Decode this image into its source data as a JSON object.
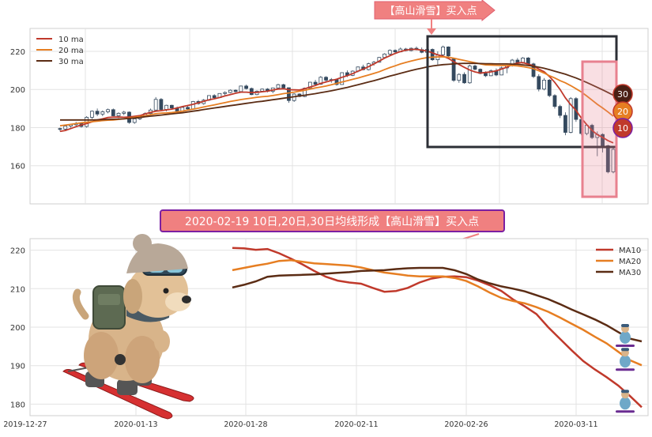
{
  "colors": {
    "ma10": "#c0392b",
    "ma20": "#e67e22",
    "ma30": "#5b2c14",
    "candle_up": "#ffffff",
    "candle_down": "#34495e",
    "annotation_fill": "#f08080",
    "annotation_border": "#7b1fa2",
    "highlight_box": "#2c2f36",
    "pink_box": "#e8818f"
  },
  "annotations": {
    "top_arrow_label": "【高山滑雪】买入点",
    "mid_label": "2020-02-19 10日,20日,30日均线形成【高山滑雪】买入点",
    "ma_badges": [
      "30",
      "20",
      "10"
    ]
  },
  "icons": {
    "skier_mascot": "skiing-puppy-icon",
    "small_skier": "small-skier-icon"
  },
  "chart_data": [
    {
      "type": "line",
      "title": "",
      "xlabel": "",
      "ylabel": "",
      "ylim": [
        140,
        232
      ],
      "yticks": [
        160,
        180,
        200,
        220
      ],
      "legend": {
        "placement": "top-left",
        "entries": [
          "10 ma",
          "20 ma",
          "30 ma"
        ]
      },
      "grid": true,
      "candles_count": 90,
      "candles": [
        [
          179.5,
          180,
          178,
          179.2
        ],
        [
          179.2,
          181,
          178.5,
          180.8
        ],
        [
          180.8,
          182,
          180,
          181.5
        ],
        [
          181.5,
          183,
          180.5,
          182.1
        ],
        [
          182.1,
          182.5,
          180,
          180.6
        ],
        [
          180.6,
          186,
          180,
          185.4
        ],
        [
          185.4,
          189,
          184.5,
          188.6
        ],
        [
          188.6,
          190,
          186,
          187.1
        ],
        [
          187.1,
          189,
          186,
          188.3
        ],
        [
          188.3,
          190,
          187.5,
          189.4
        ],
        [
          189.4,
          190,
          186,
          186.2
        ],
        [
          186.2,
          188,
          185,
          187.5
        ],
        [
          187.5,
          188.8,
          186.5,
          188.1
        ],
        [
          188.1,
          188.5,
          182,
          182.7
        ],
        [
          182.7,
          185,
          182,
          184.6
        ],
        [
          184.6,
          186.5,
          184,
          186
        ],
        [
          186,
          188,
          185.5,
          187.4
        ],
        [
          187.4,
          190,
          187,
          189.2
        ],
        [
          189.2,
          196,
          189,
          194.8
        ],
        [
          194.8,
          195.5,
          189,
          189.5
        ],
        [
          189.5,
          192,
          188.5,
          191.7
        ],
        [
          191.7,
          192,
          189.5,
          190.3
        ],
        [
          190.3,
          191,
          188,
          188.7
        ],
        [
          188.7,
          191,
          188.5,
          190.6
        ],
        [
          190.6,
          191.5,
          189,
          189.8
        ],
        [
          189.8,
          194,
          189.5,
          193.7
        ],
        [
          193.7,
          194.5,
          192,
          192.6
        ],
        [
          192.6,
          195,
          192,
          194.4
        ],
        [
          194.4,
          197,
          194,
          196.8
        ],
        [
          196.8,
          197.5,
          195,
          195.7
        ],
        [
          195.7,
          198,
          195.5,
          197.9
        ],
        [
          197.9,
          199,
          197,
          198.4
        ],
        [
          198.4,
          200,
          198,
          199.6
        ],
        [
          199.6,
          200,
          198.5,
          198.9
        ],
        [
          198.9,
          202,
          198.5,
          201.8
        ],
        [
          201.8,
          202.5,
          200,
          200.5
        ],
        [
          200.5,
          201,
          197,
          197.3
        ],
        [
          197.3,
          199.5,
          197,
          199.1
        ],
        [
          199.1,
          200.5,
          198.5,
          200.2
        ],
        [
          200.2,
          200.7,
          198.5,
          199
        ],
        [
          199,
          201,
          198,
          200.8
        ],
        [
          200.8,
          203,
          200.5,
          202.5
        ],
        [
          202.5,
          203,
          200,
          200.9
        ],
        [
          200.9,
          201,
          193,
          194.2
        ],
        [
          194.2,
          198,
          193.5,
          197.6
        ],
        [
          197.6,
          198,
          196,
          196.3
        ],
        [
          196.3,
          201,
          196,
          200.7
        ],
        [
          200.7,
          204,
          200.5,
          203.8
        ],
        [
          203.8,
          205,
          202,
          202.7
        ],
        [
          202.7,
          207,
          202.5,
          206.4
        ],
        [
          206.4,
          207,
          204,
          204.9
        ],
        [
          204.9,
          206,
          203.5,
          205.2
        ],
        [
          205.2,
          205.5,
          202,
          202.6
        ],
        [
          202.6,
          209,
          202.5,
          208.8
        ],
        [
          208.8,
          210,
          206.5,
          207.4
        ],
        [
          207.4,
          210,
          207,
          209.6
        ],
        [
          209.6,
          212,
          209,
          211.8
        ],
        [
          211.8,
          213,
          210,
          210.4
        ],
        [
          210.4,
          214,
          210,
          213.5
        ],
        [
          213.5,
          215,
          212.5,
          214.3
        ],
        [
          214.3,
          217,
          214,
          216.8
        ],
        [
          216.8,
          219,
          216.5,
          218.6
        ],
        [
          218.6,
          221,
          218,
          220.5
        ],
        [
          220.5,
          221,
          219,
          219.7
        ],
        [
          219.7,
          222,
          219.5,
          221.2
        ],
        [
          221.2,
          221.8,
          220,
          220.4
        ],
        [
          220.4,
          222,
          220,
          221.6
        ],
        [
          221.6,
          222.5,
          220.5,
          220.9
        ],
        [
          220.9,
          222,
          219,
          219.5
        ],
        [
          219.5,
          222,
          218,
          221
        ],
        [
          221,
          221.5,
          215,
          215.6
        ],
        [
          215.6,
          220,
          213,
          218.2
        ],
        [
          218.2,
          223,
          217.5,
          222.3
        ],
        [
          222.3,
          222.6,
          217,
          217.6
        ],
        [
          216,
          216.3,
          204,
          204.8
        ],
        [
          204.8,
          208.5,
          203.5,
          207.9
        ],
        [
          207.9,
          209,
          203,
          203.5
        ],
        [
          203.5,
          213,
          203,
          212.3
        ],
        [
          212.3,
          213,
          210,
          210.6
        ],
        [
          210.6,
          211,
          208,
          208.4
        ],
        [
          208.4,
          209.5,
          206.5,
          207.2
        ],
        [
          207.2,
          210.5,
          207,
          209.8
        ],
        [
          209.8,
          211,
          207,
          207.6
        ],
        [
          207.6,
          212,
          207.5,
          211.3
        ],
        [
          211.3,
          213,
          208.5,
          212.6
        ],
        [
          212.6,
          216,
          212,
          215.4
        ],
        [
          215.4,
          216.5,
          214,
          214.1
        ],
        [
          214.1,
          217,
          213.5,
          216.5
        ],
        [
          216.5,
          217,
          213,
          213.4
        ],
        [
          213.4,
          214,
          206,
          206.8
        ]
      ],
      "extra_candles": [
        [
          206.8,
          208,
          199,
          200.2
        ],
        [
          200.2,
          206,
          199.5,
          204.9
        ],
        [
          204.9,
          205.5,
          196,
          196.8
        ],
        [
          196.8,
          197.5,
          190,
          191.1
        ],
        [
          191.1,
          192,
          185,
          186.4
        ],
        [
          186.4,
          188,
          176,
          177.5
        ],
        [
          177.5,
          196,
          177,
          195.2
        ],
        [
          195.2,
          196,
          183,
          184.3
        ],
        [
          184.3,
          185,
          176,
          176.9
        ],
        [
          176.9,
          182,
          176,
          181.2
        ],
        [
          181.2,
          182,
          174,
          174.8
        ],
        [
          174.8,
          178,
          165,
          176.4
        ],
        [
          176.4,
          177,
          167,
          170.5
        ],
        [
          170.5,
          171,
          156,
          156.8
        ],
        [
          156.8,
          170,
          156,
          168.6
        ]
      ],
      "series": [
        {
          "name": "10 ma",
          "values": [
            178,
            178.5,
            179.5,
            180.5,
            181.4,
            182.1,
            183,
            184,
            184.6,
            185.3,
            185.5,
            185.6,
            185.4,
            185.6,
            185.9,
            186.3,
            187.2,
            188,
            188.6,
            188.9,
            189.3,
            189.7,
            190.3,
            191,
            191.6,
            192.2,
            193,
            193.8,
            194.6,
            195.1,
            195.8,
            196.6,
            197.3,
            198,
            198.6,
            198.6,
            198.4,
            198.5,
            198.8,
            199.1,
            199.7,
            200.2,
            200.4,
            199.9,
            199.8,
            199.7,
            200.4,
            201.3,
            202.1,
            203.2,
            203.9,
            204.7,
            205.4,
            206.4,
            207.2,
            208.3,
            209.6,
            210.7,
            212,
            213.4,
            214.9,
            216.4,
            217.7,
            218.9,
            219.9,
            220.6,
            221,
            221,
            220.6,
            220.2,
            219.2,
            218.1,
            217.5,
            216.3,
            214.6,
            213.1,
            211.6,
            210.2,
            209.2,
            208.6,
            208.9,
            209.2,
            209.8,
            210.7,
            211.7,
            213,
            213.9,
            214.1,
            213.3,
            212.4,
            210.7,
            209.3,
            206.8,
            203.7,
            200,
            195.6,
            192,
            189,
            185,
            181.6,
            178.6,
            176.3,
            174.9,
            173.2,
            172
          ]
        },
        {
          "name": "20 ma",
          "values": [
            181,
            181.3,
            181.7,
            182.1,
            182.5,
            182.8,
            183.1,
            183.4,
            183.7,
            183.9,
            184,
            184.3,
            184.6,
            185,
            185.4,
            185.8,
            186.2,
            186.8,
            187.3,
            187.6,
            187.7,
            187.9,
            188.2,
            188.6,
            189.2,
            189.7,
            190.2,
            190.8,
            191.4,
            191.9,
            192.5,
            193.1,
            193.7,
            194.2,
            194.7,
            195.1,
            195.5,
            195.9,
            196.2,
            196.4,
            196.8,
            197.3,
            197.8,
            198.2,
            198.6,
            199.1,
            199.6,
            200.2,
            200.8,
            201.3,
            201.8,
            202.5,
            203.2,
            203.9,
            204.6,
            205.3,
            206,
            206.8,
            207.6,
            208.4,
            209.3,
            210.4,
            211.5,
            212.4,
            213.4,
            214.2,
            214.9,
            215.6,
            216.2,
            216.7,
            216.9,
            217.1,
            217.1,
            216.9,
            216.4,
            215.8,
            215.2,
            214.6,
            214,
            213.4,
            212.9,
            212.8,
            212.7,
            212.6,
            212.6,
            212.6,
            212.4,
            212,
            211.5,
            210.9,
            209.8,
            208.6,
            207.2,
            206,
            204.6,
            203.5,
            202,
            200.4,
            198.7,
            196.6,
            194.4,
            192.2,
            190.3,
            188.2,
            186
          ]
        },
        {
          "name": "30 ma",
          "values": [
            184,
            184,
            184,
            184,
            184,
            184,
            184,
            184.1,
            184.2,
            184.3,
            184.4,
            184.5,
            184.6,
            184.8,
            185,
            185.3,
            185.7,
            186,
            186.3,
            186.6,
            186.9,
            187.2,
            187.5,
            187.8,
            188.2,
            188.6,
            189,
            189.5,
            189.9,
            190.3,
            190.7,
            191.1,
            191.5,
            191.9,
            192.3,
            192.7,
            193.1,
            193.5,
            193.8,
            194.2,
            194.6,
            195,
            195.4,
            195.8,
            196.2,
            196.6,
            197,
            197.4,
            197.8,
            198.3,
            198.8,
            199.3,
            199.9,
            200.5,
            201.1,
            201.8,
            202.5,
            203.2,
            203.9,
            204.6,
            205.4,
            206.2,
            207,
            207.7,
            208.5,
            209.2,
            209.9,
            210.6,
            211.2,
            211.8,
            212.3,
            212.7,
            213,
            213.2,
            213.4,
            213.6,
            213.7,
            213.7,
            213.7,
            213.6,
            213.5,
            213.5,
            213.4,
            213.4,
            213.4,
            213.3,
            213.2,
            212.9,
            212.6,
            212.2,
            211.7,
            211.1,
            210.4,
            209.6,
            208.8,
            208,
            207,
            206,
            204.9,
            203.7,
            202.4,
            201.1,
            199.8,
            198.4,
            197
          ]
        }
      ]
    },
    {
      "type": "line",
      "title": "",
      "xlabel": "",
      "ylabel": "",
      "ylim": [
        177,
        223
      ],
      "yticks": [
        180,
        190,
        200,
        210,
        220
      ],
      "x_start": "2019-12-27",
      "x_end": "2020-03-18",
      "xticks": [
        "2019-12-27",
        "2020-01-13",
        "2020-01-28",
        "2020-02-11",
        "2020-02-26",
        "2020-03-11"
      ],
      "legend": {
        "placement": "top-right",
        "entries": [
          "MA10",
          "MA20",
          "MA30"
        ]
      },
      "grid": true,
      "series": [
        {
          "name": "MA10",
          "values": [
            220.6,
            220.5,
            220.1,
            220.3,
            219.2,
            217.8,
            216.3,
            214.6,
            213.1,
            212.1,
            211.6,
            211.3,
            210.2,
            209.2,
            209.4,
            210.2,
            211.6,
            212.6,
            213.1,
            213.2,
            213,
            212.1,
            210.9,
            209.4,
            207.2,
            205.4,
            203.4,
            200,
            197,
            194,
            191.2,
            189,
            187,
            184.8,
            182.1,
            179.2
          ]
        },
        {
          "name": "MA20",
          "values": [
            214.8,
            215.4,
            216,
            216.5,
            217.2,
            217.4,
            217,
            216.6,
            216.4,
            216.2,
            216,
            215.5,
            214.8,
            214.2,
            213.8,
            213.4,
            213.2,
            213.2,
            213.2,
            212.8,
            212,
            210.6,
            209,
            207.6,
            206.8,
            206.2,
            205.2,
            204,
            202.5,
            200.9,
            199.3,
            197.5,
            195.8,
            193.6,
            191.4,
            190.1
          ]
        },
        {
          "name": "MA30",
          "values": [
            210.3,
            211,
            211.9,
            213.1,
            213.4,
            213.5,
            213.6,
            213.7,
            213.9,
            214.1,
            214.3,
            214.6,
            214.7,
            214.8,
            215.1,
            215.3,
            215.4,
            215.4,
            215.4,
            214.8,
            213.8,
            212.4,
            211.4,
            210.6,
            210,
            209.3,
            208.3,
            207.3,
            206,
            204.6,
            203.3,
            202,
            200.5,
            198.7,
            197,
            196.3
          ]
        }
      ]
    }
  ]
}
